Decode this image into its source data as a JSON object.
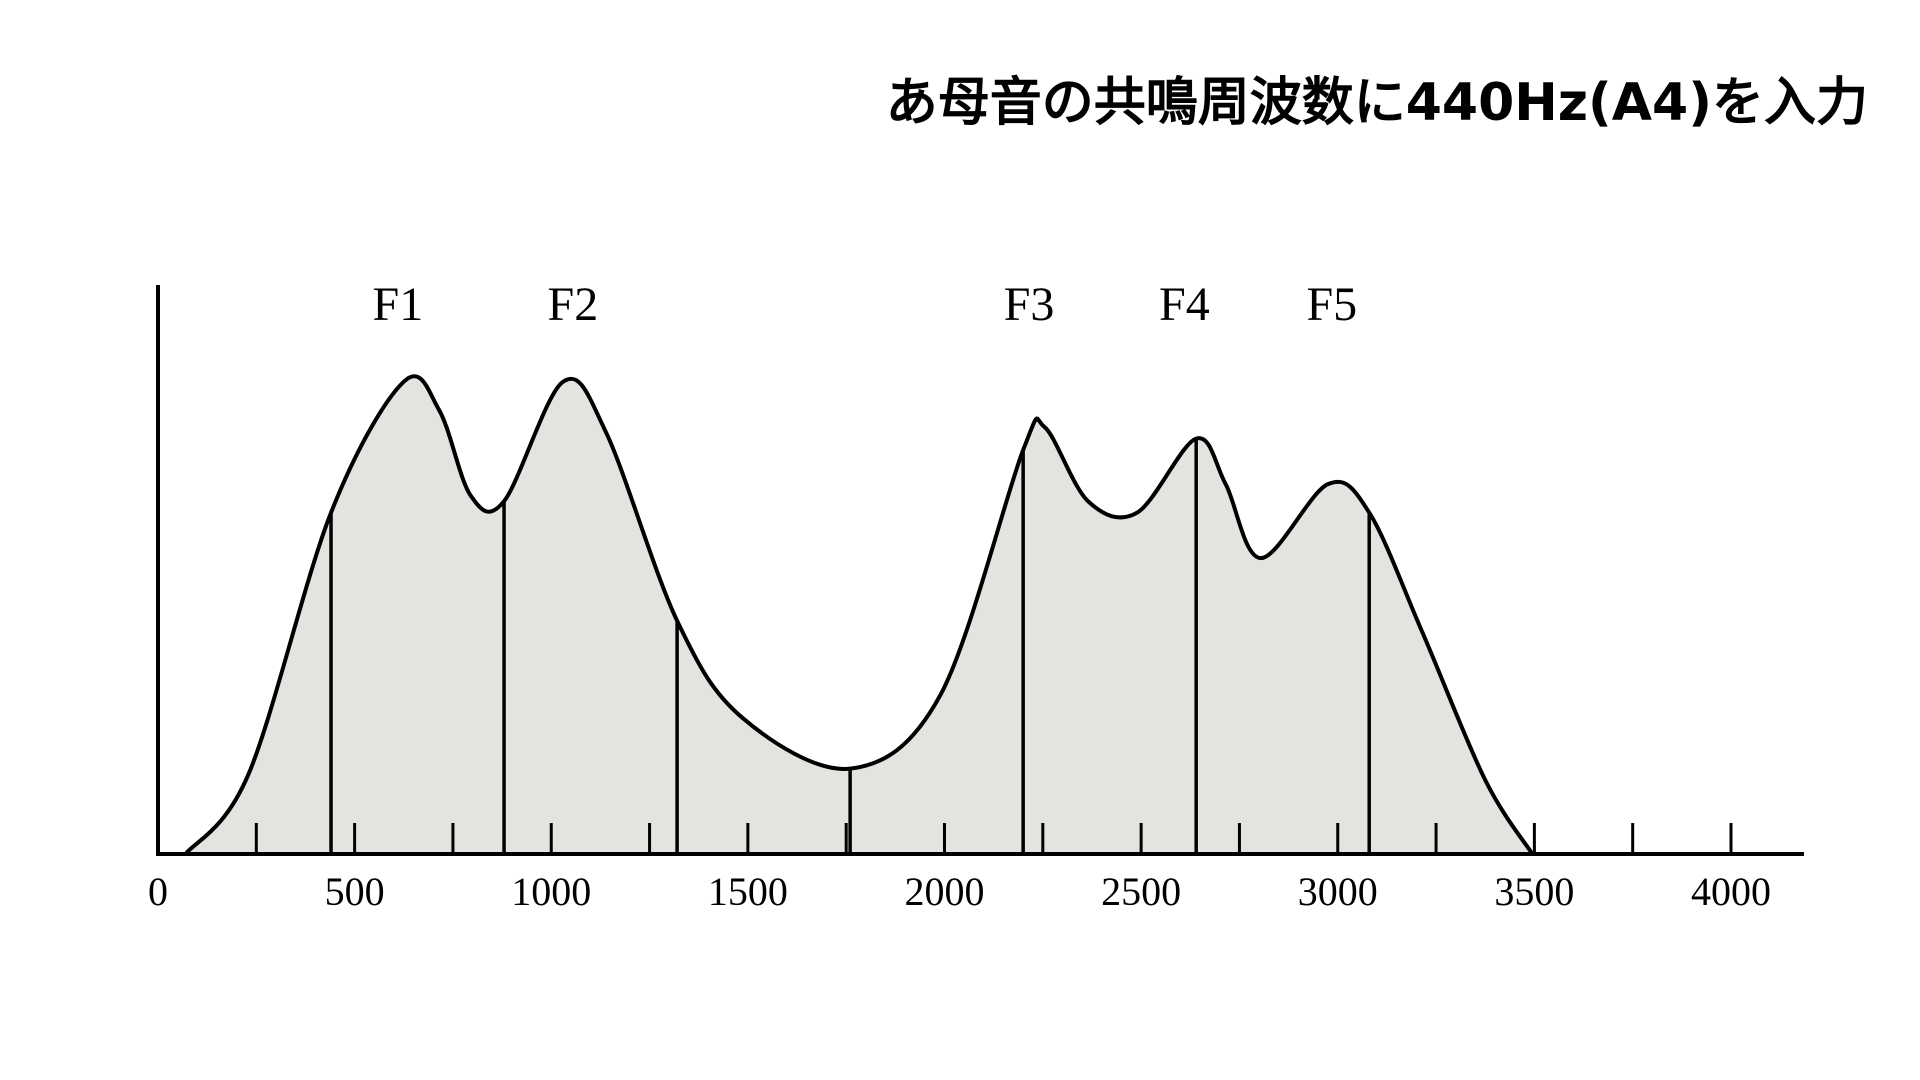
{
  "chart_data": {
    "type": "area",
    "title": "あ母音の共鳴周波数に440Hz(A4)を入力",
    "series": [
      {
        "color": "#e4e3df",
        "x": [
          70,
          230,
          440,
          625,
          715,
          795,
          880,
          1030,
          1140,
          1320,
          1485,
          1760,
          1990,
          2200,
          2255,
          2365,
          2490,
          2640,
          2715,
          2805,
          2975,
          3080,
          3215,
          3375,
          3495
        ],
        "values": [
          0,
          14,
          60,
          83,
          78,
          63,
          62,
          83,
          74,
          41,
          24,
          15,
          28,
          71,
          75,
          62,
          60,
          73,
          65,
          52,
          65,
          60,
          39,
          13,
          0
        ]
      }
    ],
    "harmonics": {
      "x": [
        440,
        880,
        1320,
        1760,
        2200,
        2640,
        3080
      ],
      "values": [
        60,
        62,
        41,
        15,
        71,
        73,
        60
      ]
    },
    "annotations": [
      {
        "text": "F1",
        "x": 610
      },
      {
        "text": "F2",
        "x": 1055
      },
      {
        "text": "F3",
        "x": 2215
      },
      {
        "text": "F4",
        "x": 2610
      },
      {
        "text": "F5",
        "x": 2985
      }
    ],
    "xlim": [
      0,
      4000
    ],
    "ylim": [
      0,
      100
    ],
    "xticks": [
      0,
      500,
      1000,
      1500,
      2000,
      2500,
      3000,
      3500,
      4000
    ],
    "minor_xticks": [
      250,
      750,
      1250,
      1750,
      2250,
      2750,
      3250,
      3750
    ]
  }
}
